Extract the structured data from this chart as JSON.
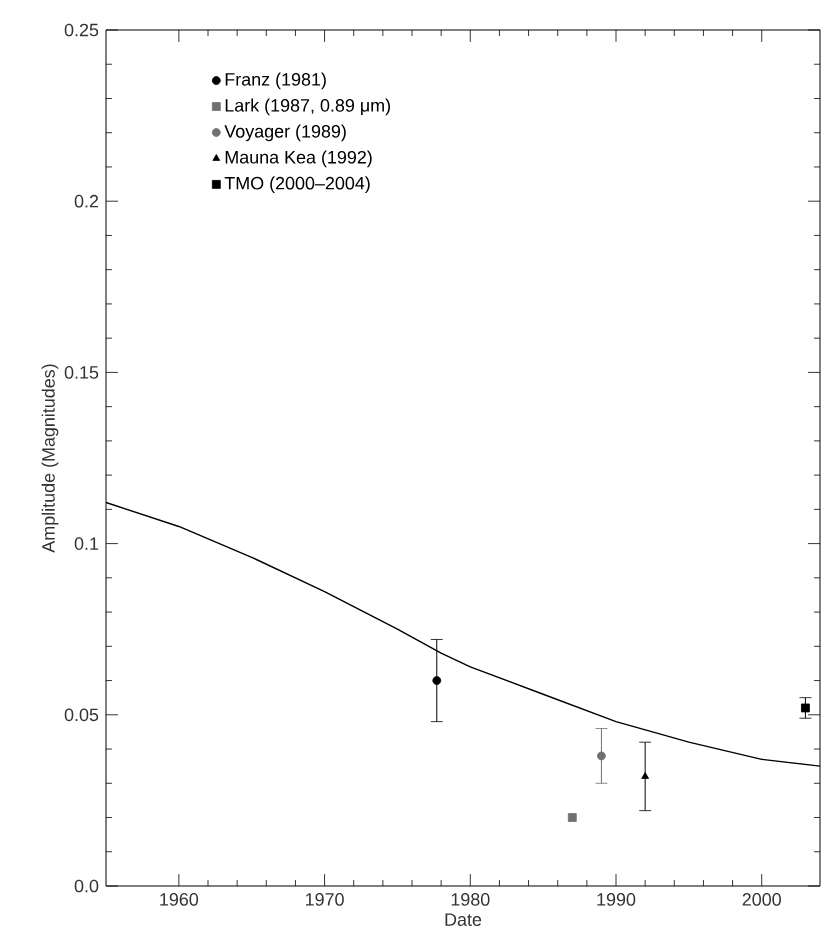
{
  "chart_data": {
    "type": "scatter",
    "xlabel": "Date",
    "ylabel": "Amplitude (Magnitudes)",
    "xlim": [
      1955,
      2004
    ],
    "ylim": [
      0,
      0.25
    ],
    "xticks": [
      1960,
      1970,
      1980,
      1990,
      2000
    ],
    "yticks": [
      {
        "value": 0,
        "label": "0.0"
      },
      0.05,
      0.1,
      0.15,
      0.2,
      0.25
    ],
    "legend": "top left",
    "grid": false,
    "series": [
      {
        "type": "line",
        "color": "#000000",
        "x": [
          1955,
          1960,
          1965,
          1970,
          1975,
          1978,
          1980,
          1985,
          1990,
          1995,
          2000,
          2004
        ],
        "values": [
          0.112,
          0.105,
          0.096,
          0.086,
          0.075,
          0.068,
          0.064,
          0.056,
          0.048,
          0.042,
          0.037,
          0.035
        ],
        "marker": "none",
        "line_style": "solid"
      },
      {
        "name": "Franz (1981)",
        "color": "#000000",
        "marker": "circle",
        "x": [
          1977.7
        ],
        "values": [
          0.06
        ],
        "errors": [
          0.012
        ]
      },
      {
        "name": "Lark (1987, 0.89 μm)",
        "color": "#707070",
        "marker": "square",
        "x": [
          1987.0
        ],
        "values": [
          0.02
        ]
      },
      {
        "name": "Voyager (1989)",
        "color": "#707070",
        "marker": "circle",
        "x": [
          1989.0
        ],
        "values": [
          0.038
        ],
        "errors": [
          0.008
        ]
      },
      {
        "name": "Mauna Kea (1992)",
        "color": "#000000",
        "marker": "triangle",
        "x": [
          1992.0
        ],
        "values": [
          0.032
        ],
        "errors": [
          0.01
        ]
      },
      {
        "name": "TMO (2000–2004)",
        "color": "#000000",
        "marker": "square",
        "x": [
          2003.0
        ],
        "values": [
          0.052
        ],
        "errors": [
          0.003
        ]
      }
    ]
  }
}
